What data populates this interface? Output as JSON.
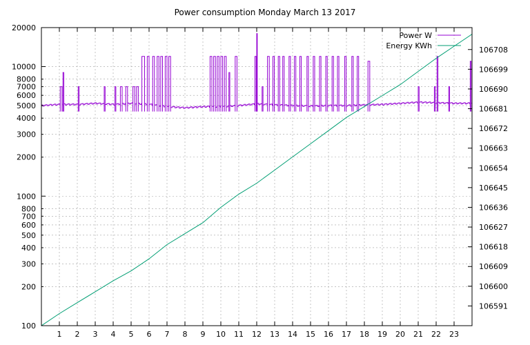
{
  "chart_data": {
    "type": "line",
    "title": "Power consumption Monday March 13 2017",
    "x_ticks": [
      "1",
      "2",
      "3",
      "4",
      "5",
      "6",
      "7",
      "8",
      "9",
      "10",
      "11",
      "12",
      "13",
      "14",
      "15",
      "16",
      "17",
      "18",
      "19",
      "20",
      "21",
      "22",
      "23"
    ],
    "xlim": [
      0,
      24
    ],
    "y_left": {
      "scale": "log",
      "ylim": [
        100,
        20000
      ],
      "ticks": [
        100,
        200,
        300,
        400,
        500,
        600,
        700,
        800,
        1000,
        2000,
        3000,
        4000,
        5000,
        6000,
        7000,
        8000,
        10000,
        20000
      ],
      "tick_labels": [
        "100",
        "200",
        "300",
        "400",
        "500",
        "600",
        "700",
        "800",
        "1000",
        "2000",
        "3000",
        "4000",
        "5000",
        "6000",
        "7000",
        "8000",
        "10000",
        "20000"
      ]
    },
    "y_right": {
      "scale": "linear",
      "ylim": [
        106582,
        106718
      ],
      "ticks": [
        106591,
        106600,
        106609,
        106618,
        106627,
        106636,
        106645,
        106654,
        106663,
        106672,
        106681,
        106690,
        106699,
        106708
      ],
      "tick_labels": [
        "106591",
        "106600",
        "106609",
        "106618",
        "106627",
        "106636",
        "106645",
        "106654",
        "106663",
        "106672",
        "106681",
        "106690",
        "106699",
        "106708"
      ]
    },
    "grid": true,
    "legend_position": "top-right",
    "series": [
      {
        "name": "Power W",
        "axis": "left",
        "color": "#9400d3",
        "baseline": [
          [
            0.0,
            5000
          ],
          [
            1.0,
            5100
          ],
          [
            2.0,
            5100
          ],
          [
            3.0,
            5200
          ],
          [
            4.0,
            5100
          ],
          [
            5.0,
            5200
          ],
          [
            6.0,
            5100
          ],
          [
            7.0,
            4900
          ],
          [
            8.0,
            4800
          ],
          [
            9.0,
            4900
          ],
          [
            10.0,
            4900
          ],
          [
            11.0,
            5000
          ],
          [
            12.0,
            5150
          ],
          [
            13.0,
            5050
          ],
          [
            14.0,
            5000
          ],
          [
            15.0,
            4950
          ],
          [
            16.0,
            5000
          ],
          [
            17.0,
            5000
          ],
          [
            18.0,
            5050
          ],
          [
            19.0,
            5100
          ],
          [
            20.0,
            5200
          ],
          [
            21.0,
            5300
          ],
          [
            22.0,
            5250
          ],
          [
            23.0,
            5200
          ],
          [
            24.0,
            5200
          ]
        ],
        "spikes": [
          {
            "x": 1.05,
            "w": 0.1,
            "y": 7000
          },
          {
            "x": 1.2,
            "w": 0.05,
            "y": 9000
          },
          {
            "x": 2.05,
            "w": 0.05,
            "y": 7000
          },
          {
            "x": 3.5,
            "w": 0.05,
            "y": 7000
          },
          {
            "x": 4.1,
            "w": 0.05,
            "y": 7000
          },
          {
            "x": 4.4,
            "w": 0.1,
            "y": 7000
          },
          {
            "x": 4.7,
            "w": 0.1,
            "y": 7000
          },
          {
            "x": 5.1,
            "w": 0.1,
            "y": 7000
          },
          {
            "x": 5.3,
            "w": 0.1,
            "y": 7000
          },
          {
            "x": 5.6,
            "w": 0.15,
            "y": 12000
          },
          {
            "x": 5.9,
            "w": 0.1,
            "y": 12000
          },
          {
            "x": 6.2,
            "w": 0.1,
            "y": 12000
          },
          {
            "x": 6.45,
            "w": 0.1,
            "y": 12000
          },
          {
            "x": 6.65,
            "w": 0.1,
            "y": 12000
          },
          {
            "x": 6.9,
            "w": 0.1,
            "y": 12000
          },
          {
            "x": 7.1,
            "w": 0.1,
            "y": 12000
          },
          {
            "x": 9.4,
            "w": 0.1,
            "y": 12000
          },
          {
            "x": 9.6,
            "w": 0.1,
            "y": 12000
          },
          {
            "x": 9.8,
            "w": 0.1,
            "y": 12000
          },
          {
            "x": 10.0,
            "w": 0.1,
            "y": 12000
          },
          {
            "x": 10.2,
            "w": 0.1,
            "y": 12000
          },
          {
            "x": 10.45,
            "w": 0.05,
            "y": 9000
          },
          {
            "x": 10.8,
            "w": 0.1,
            "y": 12000
          },
          {
            "x": 11.9,
            "w": 0.07,
            "y": 12000
          },
          {
            "x": 12.0,
            "w": 0.03,
            "y": 18000
          },
          {
            "x": 12.3,
            "w": 0.05,
            "y": 7000
          },
          {
            "x": 12.6,
            "w": 0.1,
            "y": 12000
          },
          {
            "x": 12.9,
            "w": 0.08,
            "y": 12000
          },
          {
            "x": 13.2,
            "w": 0.08,
            "y": 12000
          },
          {
            "x": 13.45,
            "w": 0.08,
            "y": 12000
          },
          {
            "x": 13.8,
            "w": 0.08,
            "y": 12000
          },
          {
            "x": 14.1,
            "w": 0.08,
            "y": 12000
          },
          {
            "x": 14.4,
            "w": 0.08,
            "y": 12000
          },
          {
            "x": 14.8,
            "w": 0.08,
            "y": 12000
          },
          {
            "x": 15.15,
            "w": 0.08,
            "y": 12000
          },
          {
            "x": 15.5,
            "w": 0.08,
            "y": 12000
          },
          {
            "x": 15.85,
            "w": 0.08,
            "y": 12000
          },
          {
            "x": 16.2,
            "w": 0.08,
            "y": 12000
          },
          {
            "x": 16.5,
            "w": 0.08,
            "y": 12000
          },
          {
            "x": 16.9,
            "w": 0.08,
            "y": 12000
          },
          {
            "x": 17.3,
            "w": 0.08,
            "y": 12000
          },
          {
            "x": 17.6,
            "w": 0.08,
            "y": 12000
          },
          {
            "x": 18.2,
            "w": 0.1,
            "y": 11000
          },
          {
            "x": 21.0,
            "w": 0.05,
            "y": 7000
          },
          {
            "x": 21.9,
            "w": 0.05,
            "y": 7000
          },
          {
            "x": 22.05,
            "w": 0.05,
            "y": 12000
          },
          {
            "x": 22.7,
            "w": 0.05,
            "y": 7000
          },
          {
            "x": 23.9,
            "w": 0.05,
            "y": 11000
          }
        ]
      },
      {
        "name": "Energy KWh",
        "axis": "right",
        "color": "#009e73",
        "points": [
          [
            0,
            106582
          ],
          [
            1,
            106587.5
          ],
          [
            2,
            106592.5
          ],
          [
            3,
            106597.5
          ],
          [
            4,
            106602.5
          ],
          [
            5,
            106607
          ],
          [
            6,
            106612.5
          ],
          [
            7,
            106619
          ],
          [
            8,
            106624
          ],
          [
            9,
            106629
          ],
          [
            10,
            106636
          ],
          [
            11,
            106642
          ],
          [
            12,
            106647
          ],
          [
            13,
            106653
          ],
          [
            14,
            106659
          ],
          [
            15,
            106665
          ],
          [
            16,
            106671
          ],
          [
            17,
            106677
          ],
          [
            18,
            106682
          ],
          [
            19,
            106687
          ],
          [
            20,
            106692
          ],
          [
            21,
            106698
          ],
          [
            22,
            106704
          ],
          [
            23,
            106709.5
          ],
          [
            24,
            106715
          ]
        ]
      }
    ]
  }
}
